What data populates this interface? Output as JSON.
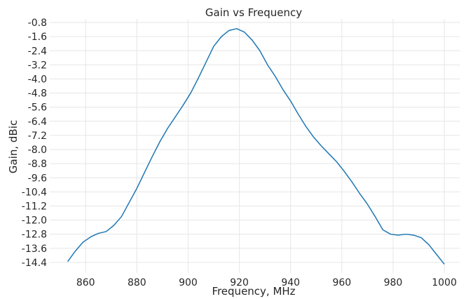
{
  "chart_data": {
    "type": "line",
    "title": "Gain vs Frequency",
    "xlabel": "Frequency, MHz",
    "ylabel": "Gain, dBic",
    "xlim": [
      846,
      1006
    ],
    "ylim": [
      -15.0,
      -0.6
    ],
    "xticks": [
      860,
      880,
      900,
      920,
      940,
      960,
      980,
      1000
    ],
    "xtick_labels": [
      "860",
      "880",
      "900",
      "920",
      "940",
      "960",
      "980",
      "1000"
    ],
    "yticks": [
      -0.8,
      -1.6,
      -2.4,
      -3.2,
      -4.0,
      -4.8,
      -5.6,
      -6.4,
      -7.2,
      -8.0,
      -8.8,
      -9.6,
      -10.4,
      -11.2,
      -12.0,
      -12.8,
      -13.6,
      -14.4
    ],
    "ytick_labels": [
      "-0.8",
      "-1.6",
      "-2.4",
      "-3.2",
      "-4.0",
      "-4.8",
      "-5.6",
      "-6.4",
      "-7.2",
      "-8.0",
      "-8.8",
      "-9.6",
      "-10.4",
      "-11.2",
      "-12.0",
      "-12.8",
      "-13.6",
      "-14.4"
    ],
    "grid": true,
    "legend": false,
    "series": [
      {
        "color": "#1f77b4",
        "x": [
          853,
          856,
          859,
          862,
          865,
          868,
          871,
          874,
          877,
          880,
          883,
          886,
          889,
          892,
          895,
          898,
          901,
          904,
          907,
          910,
          913,
          916,
          919,
          922,
          925,
          928,
          931,
          934,
          937,
          940,
          943,
          946,
          949,
          952,
          955,
          958,
          961,
          964,
          967,
          970,
          973,
          976,
          979,
          982,
          985,
          988,
          991,
          994,
          997,
          1000
        ],
        "values": [
          -14.35,
          -13.75,
          -13.25,
          -12.95,
          -12.75,
          -12.65,
          -12.3,
          -11.8,
          -11.0,
          -10.2,
          -9.3,
          -8.4,
          -7.55,
          -6.8,
          -6.15,
          -5.5,
          -4.8,
          -3.95,
          -3.05,
          -2.15,
          -1.6,
          -1.25,
          -1.15,
          -1.35,
          -1.8,
          -2.4,
          -3.2,
          -3.85,
          -4.6,
          -5.25,
          -6.0,
          -6.7,
          -7.3,
          -7.8,
          -8.25,
          -8.7,
          -9.25,
          -9.85,
          -10.5,
          -11.1,
          -11.8,
          -12.55,
          -12.8,
          -12.85,
          -12.8,
          -12.85,
          -13.0,
          -13.4,
          -13.95,
          -14.5
        ]
      }
    ]
  }
}
